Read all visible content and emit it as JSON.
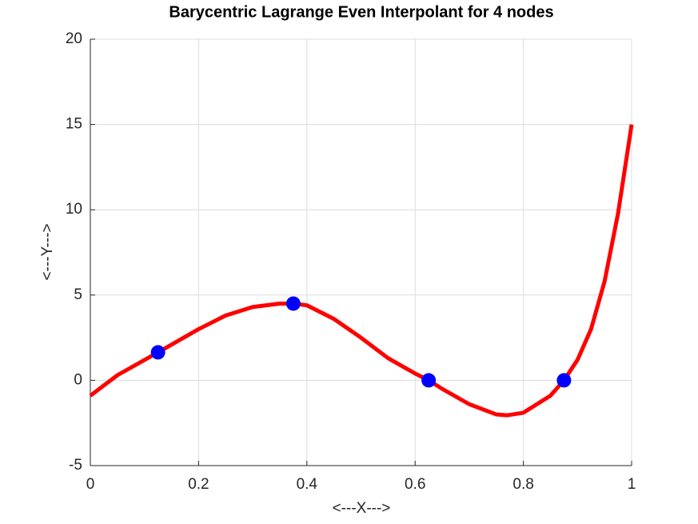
{
  "chart_data": {
    "type": "line",
    "title": "Barycentric Lagrange Even Interpolant for 4 nodes",
    "xlabel": "<---X--->",
    "ylabel": "<---Y--->",
    "xlim": [
      0,
      1
    ],
    "ylim": [
      -5,
      20
    ],
    "xticks": [
      0,
      0.2,
      0.4,
      0.6,
      0.8,
      1
    ],
    "yticks": [
      -5,
      0,
      5,
      10,
      15,
      20
    ],
    "grid": true,
    "series": [
      {
        "type": "line",
        "color": "#ff0000",
        "x": [
          0,
          0.05,
          0.125,
          0.2,
          0.25,
          0.3,
          0.35,
          0.375,
          0.4,
          0.45,
          0.5,
          0.55,
          0.6,
          0.625,
          0.65,
          0.7,
          0.75,
          0.77,
          0.8,
          0.85,
          0.875,
          0.9,
          0.925,
          0.95,
          0.975,
          1
        ],
        "values": [
          -0.9,
          0.3,
          1.64,
          3.0,
          3.8,
          4.3,
          4.5,
          4.5,
          4.4,
          3.6,
          2.5,
          1.3,
          0.4,
          0,
          -0.5,
          -1.4,
          -2.0,
          -2.05,
          -1.9,
          -0.9,
          0,
          1.2,
          3.0,
          5.8,
          9.8,
          15
        ]
      },
      {
        "type": "scatter",
        "color": "#0000ff",
        "x": [
          0.125,
          0.375,
          0.625,
          0.875
        ],
        "values": [
          1.64,
          4.5,
          0,
          0
        ]
      }
    ]
  }
}
